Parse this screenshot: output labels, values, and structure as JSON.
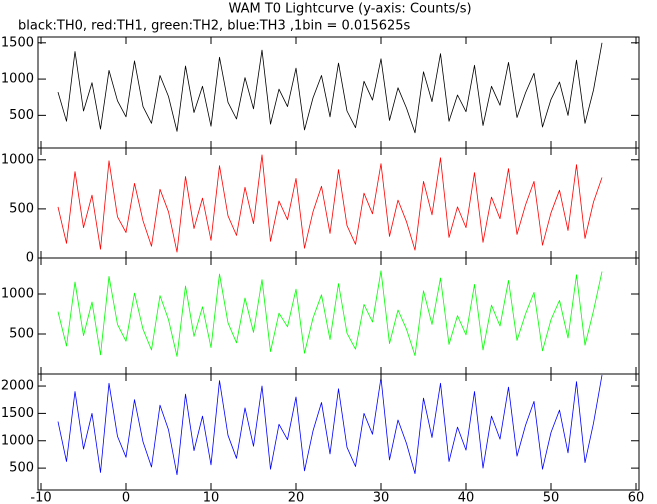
{
  "chart_data": [
    {
      "type": "line",
      "title": "WAM T0 Lightcurve (y-axis: Counts/s)",
      "subtitle": "black:TH0, red:TH1, green:TH2, blue:TH3 ,1bin = 0.015625s",
      "x": [
        -8,
        -7,
        -6,
        -5,
        -4,
        -3,
        -2,
        -1,
        0,
        1,
        2,
        3,
        4,
        5,
        6,
        7,
        8,
        9,
        10,
        11,
        12,
        13,
        14,
        15,
        16,
        17,
        18,
        19,
        20,
        21,
        22,
        23,
        24,
        25,
        26,
        27,
        28,
        29,
        30,
        31,
        32,
        33,
        34,
        35,
        36,
        37,
        38,
        39,
        40,
        41,
        42,
        43,
        44,
        45,
        46,
        47,
        48,
        49,
        50,
        51,
        52,
        53,
        54,
        55,
        56
      ],
      "series": [
        {
          "name": "TH0",
          "color": "#000000",
          "values": [
            820,
            420,
            1380,
            560,
            950,
            310,
            1120,
            700,
            480,
            1250,
            620,
            390,
            1050,
            760,
            280,
            1180,
            540,
            900,
            350,
            1300,
            680,
            450,
            1020,
            590,
            1400,
            380,
            860,
            620,
            1150,
            300,
            740,
            1050,
            480,
            1220,
            560,
            330,
            970,
            710,
            1280,
            430,
            880,
            600,
            260,
            1100,
            690,
            1350,
            420,
            780,
            550,
            1190,
            360,
            900,
            640,
            1230,
            470,
            810,
            1080,
            340,
            720,
            960,
            500,
            1260,
            390,
            850,
            1500
          ]
        }
      ],
      "xlim": [
        -10,
        60
      ],
      "ylim": [
        50,
        1580
      ],
      "yticks": [
        500,
        1000,
        1500
      ]
    },
    {
      "type": "line",
      "x": [
        -8,
        -7,
        -6,
        -5,
        -4,
        -3,
        -2,
        -1,
        0,
        1,
        2,
        3,
        4,
        5,
        6,
        7,
        8,
        9,
        10,
        11,
        12,
        13,
        14,
        15,
        16,
        17,
        18,
        19,
        20,
        21,
        22,
        23,
        24,
        25,
        26,
        27,
        28,
        29,
        30,
        31,
        32,
        33,
        34,
        35,
        36,
        37,
        38,
        39,
        40,
        41,
        42,
        43,
        44,
        45,
        46,
        47,
        48,
        49,
        50,
        51,
        52,
        53,
        54,
        55,
        56
      ],
      "series": [
        {
          "name": "TH1",
          "color": "#ff0000",
          "values": [
            520,
            150,
            880,
            310,
            640,
            90,
            990,
            420,
            260,
            760,
            380,
            120,
            700,
            470,
            60,
            830,
            300,
            610,
            180,
            940,
            430,
            230,
            720,
            350,
            1050,
            170,
            580,
            390,
            810,
            100,
            470,
            730,
            250,
            900,
            330,
            140,
            660,
            450,
            960,
            220,
            590,
            370,
            80,
            780,
            440,
            1020,
            210,
            520,
            310,
            870,
            160,
            620,
            400,
            910,
            240,
            540,
            780,
            130,
            460,
            690,
            280,
            950,
            200,
            570,
            820
          ]
        }
      ],
      "xlim": [
        -10,
        60
      ],
      "ylim": [
        0,
        1120
      ],
      "yticks": [
        0,
        500,
        1000
      ]
    },
    {
      "type": "line",
      "x": [
        -8,
        -7,
        -6,
        -5,
        -4,
        -3,
        -2,
        -1,
        0,
        1,
        2,
        3,
        4,
        5,
        6,
        7,
        8,
        9,
        10,
        11,
        12,
        13,
        14,
        15,
        16,
        17,
        18,
        19,
        20,
        21,
        22,
        23,
        24,
        25,
        26,
        27,
        28,
        29,
        30,
        31,
        32,
        33,
        34,
        35,
        36,
        37,
        38,
        39,
        40,
        41,
        42,
        43,
        44,
        45,
        46,
        47,
        48,
        49,
        50,
        51,
        52,
        53,
        54,
        55,
        56
      ],
      "series": [
        {
          "name": "TH2",
          "color": "#00ff00",
          "values": [
            780,
            350,
            1150,
            480,
            900,
            240,
            1220,
            620,
            410,
            1010,
            560,
            300,
            980,
            680,
            220,
            1100,
            470,
            840,
            330,
            1250,
            640,
            390,
            950,
            520,
            1180,
            280,
            760,
            590,
            1060,
            260,
            700,
            990,
            430,
            1130,
            510,
            310,
            870,
            650,
            1290,
            380,
            800,
            560,
            230,
            1040,
            620,
            1200,
            370,
            730,
            490,
            1120,
            300,
            860,
            600,
            1170,
            420,
            750,
            1020,
            290,
            680,
            920,
            450,
            1240,
            360,
            790,
            1280
          ]
        }
      ],
      "xlim": [
        -10,
        60
      ],
      "ylim": [
        0,
        1450
      ],
      "yticks": [
        500,
        1000
      ]
    },
    {
      "type": "line",
      "x": [
        -8,
        -7,
        -6,
        -5,
        -4,
        -3,
        -2,
        -1,
        0,
        1,
        2,
        3,
        4,
        5,
        6,
        7,
        8,
        9,
        10,
        11,
        12,
        13,
        14,
        15,
        16,
        17,
        18,
        19,
        20,
        21,
        22,
        23,
        24,
        25,
        26,
        27,
        28,
        29,
        30,
        31,
        32,
        33,
        34,
        35,
        36,
        37,
        38,
        39,
        40,
        41,
        42,
        43,
        44,
        45,
        46,
        47,
        48,
        49,
        50,
        51,
        52,
        53,
        54,
        55,
        56
      ],
      "series": [
        {
          "name": "TH3",
          "color": "#0000ff",
          "values": [
            1350,
            620,
            1900,
            850,
            1500,
            420,
            2050,
            1080,
            700,
            1750,
            980,
            520,
            1650,
            1200,
            380,
            1850,
            820,
            1450,
            560,
            2100,
            1100,
            680,
            1600,
            900,
            2000,
            480,
            1300,
            1020,
            1800,
            450,
            1180,
            1700,
            760,
            1950,
            880,
            530,
            1500,
            1120,
            2150,
            650,
            1380,
            950,
            400,
            1780,
            1060,
            2050,
            620,
            1250,
            830,
            1900,
            500,
            1450,
            1030,
            1980,
            720,
            1280,
            1720,
            480,
            1150,
            1560,
            780,
            2080,
            600,
            1320,
            2200
          ]
        }
      ],
      "xlim": [
        -10,
        60
      ],
      "ylim": [
        100,
        2220
      ],
      "yticks": [
        500,
        1000,
        1500,
        2000
      ],
      "xticks": [
        -10,
        0,
        10,
        20,
        30,
        40,
        50,
        60
      ]
    }
  ]
}
